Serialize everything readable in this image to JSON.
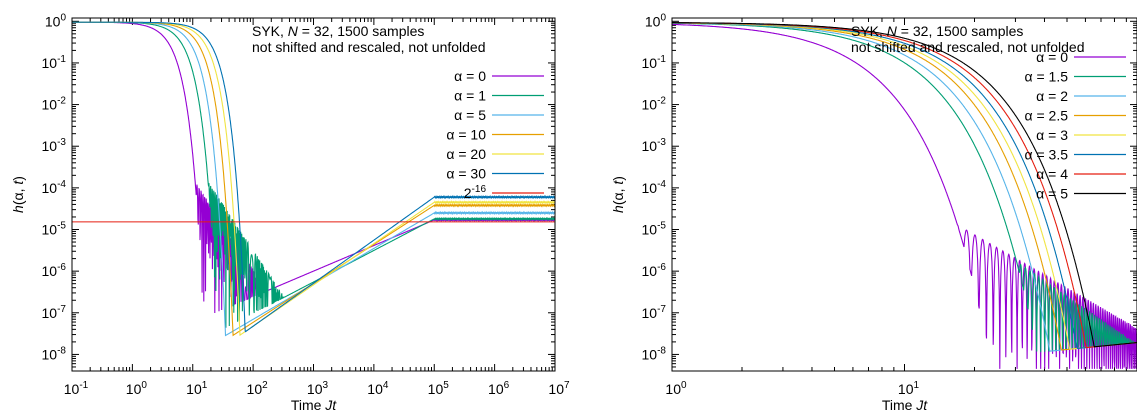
{
  "chart_data": [
    {
      "type": "line",
      "title": "SYK, N = 32, 1500 samples",
      "title_parts": [
        "SYK, ",
        "N",
        " = 32, 1500 samples"
      ],
      "subtitle": "not shifted and rescaled, not unfolded",
      "xlabel": "Time Jt",
      "xlabel_parts": [
        "Time ",
        "Jt"
      ],
      "ylabel": "h(α, t)",
      "ylabel_parts": [
        "h",
        "(α, ",
        "t",
        ")"
      ],
      "x_scale": "log",
      "y_scale": "log",
      "xlim": [
        0.1,
        10000000
      ],
      "ylim": [
        4e-09,
        1.2
      ],
      "xticks": [
        {
          "value": 0.1,
          "base": "10",
          "exp": "-1"
        },
        {
          "value": 1,
          "base": "10",
          "exp": "0"
        },
        {
          "value": 10,
          "base": "10",
          "exp": "1"
        },
        {
          "value": 100,
          "base": "10",
          "exp": "2"
        },
        {
          "value": 1000,
          "base": "10",
          "exp": "3"
        },
        {
          "value": 10000,
          "base": "10",
          "exp": "4"
        },
        {
          "value": 100000,
          "base": "10",
          "exp": "5"
        },
        {
          "value": 1000000,
          "base": "10",
          "exp": "6"
        },
        {
          "value": 10000000,
          "base": "10",
          "exp": "7"
        }
      ],
      "yticks": [
        {
          "value": 1,
          "base": "10",
          "exp": "0"
        },
        {
          "value": 0.1,
          "base": "10",
          "exp": "-1"
        },
        {
          "value": 0.01,
          "base": "10",
          "exp": "-2"
        },
        {
          "value": 0.001,
          "base": "10",
          "exp": "-3"
        },
        {
          "value": 0.0001,
          "base": "10",
          "exp": "-4"
        },
        {
          "value": 1e-05,
          "base": "10",
          "exp": "-5"
        },
        {
          "value": 1e-06,
          "base": "10",
          "exp": "-6"
        },
        {
          "value": 1e-07,
          "base": "10",
          "exp": "-7"
        },
        {
          "value": 1e-08,
          "base": "10",
          "exp": "-8"
        }
      ],
      "legend_position": "top-right",
      "series": [
        {
          "name": "α = 0",
          "color": "#9400d3",
          "t0": 3.3,
          "plateau": 1.7e-05,
          "ramp_min": 7e-08,
          "osc": true
        },
        {
          "name": "α = 1",
          "color": "#009e73",
          "t0": 5.4,
          "plateau": 1.8e-05,
          "ramp_min": 3e-08,
          "osc": true
        },
        {
          "name": "α = 5",
          "color": "#56b4e9",
          "t0": 7.5,
          "plateau": 2.5e-05,
          "ramp_min": 2.5e-08,
          "osc": false
        },
        {
          "name": "α = 10",
          "color": "#e69f00",
          "t0": 10,
          "plateau": 3.8e-05,
          "ramp_min": 2.5e-08,
          "osc": false
        },
        {
          "name": "α = 20",
          "color": "#f0e442",
          "t0": 13,
          "plateau": 4.5e-05,
          "ramp_min": 2.5e-08,
          "osc": false
        },
        {
          "name": "α = 30",
          "color": "#0072b2",
          "t0": 16,
          "plateau": 6e-05,
          "ramp_min": 3e-08,
          "osc": false
        }
      ],
      "reference_line": {
        "name": "2^-16",
        "base": "2",
        "exp": "-16",
        "value": 1.52587890625e-05,
        "color": "#e51e10"
      }
    },
    {
      "type": "line",
      "title": "SYK, N = 32, 1500 samples",
      "title_parts": [
        "SYK, ",
        "N",
        " = 32, 1500 samples"
      ],
      "subtitle": "not shifted and rescaled, not unfolded",
      "xlabel": "Time Jt",
      "xlabel_parts": [
        "Time ",
        "Jt"
      ],
      "ylabel": "h(α, t)",
      "ylabel_parts": [
        "h",
        "(α, ",
        "t",
        ")"
      ],
      "x_scale": "log",
      "y_scale": "log",
      "xlim": [
        1,
        100
      ],
      "ylim": [
        4e-09,
        1.2
      ],
      "xticks": [
        {
          "value": 1,
          "base": "10",
          "exp": "0"
        },
        {
          "value": 10,
          "base": "10",
          "exp": "1"
        }
      ],
      "yticks": [
        {
          "value": 1,
          "base": "10",
          "exp": "0"
        },
        {
          "value": 0.1,
          "base": "10",
          "exp": "-1"
        },
        {
          "value": 0.01,
          "base": "10",
          "exp": "-2"
        },
        {
          "value": 0.001,
          "base": "10",
          "exp": "-3"
        },
        {
          "value": 0.0001,
          "base": "10",
          "exp": "-4"
        },
        {
          "value": 1e-05,
          "base": "10",
          "exp": "-5"
        },
        {
          "value": 1e-06,
          "base": "10",
          "exp": "-6"
        },
        {
          "value": 1e-07,
          "base": "10",
          "exp": "-7"
        },
        {
          "value": 1e-08,
          "base": "10",
          "exp": "-8"
        }
      ],
      "legend_position": "top-right",
      "series": [
        {
          "name": "α = 0",
          "color": "#9400d3",
          "t0": 3.3,
          "osc": true
        },
        {
          "name": "α = 1.5",
          "color": "#009e73",
          "t0": 6.0,
          "osc": true
        },
        {
          "name": "α = 2",
          "color": "#56b4e9",
          "t0": 7.0,
          "osc": false
        },
        {
          "name": "α = 2.5",
          "color": "#e69f00",
          "t0": 8.0,
          "osc": false
        },
        {
          "name": "α = 3",
          "color": "#f0e442",
          "t0": 8.8,
          "osc": false
        },
        {
          "name": "α = 3.5",
          "color": "#0072b2",
          "t0": 9.6,
          "osc": false
        },
        {
          "name": "α = 4",
          "color": "#e51e10",
          "t0": 10.6,
          "osc": false
        },
        {
          "name": "α = 5",
          "color": "#000000",
          "t0": 11.6,
          "osc": false
        }
      ]
    }
  ]
}
